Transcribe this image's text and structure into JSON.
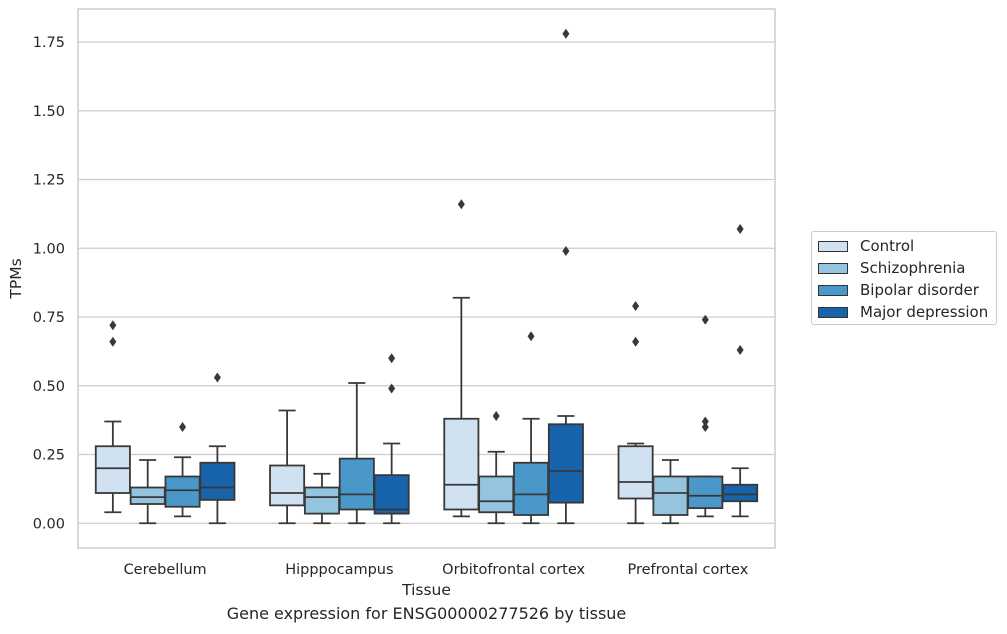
{
  "caption": "Gene expression for ENSG00000277526 by tissue",
  "chart_data": {
    "type": "box",
    "title": "",
    "xlabel": "Tissue",
    "ylabel": "TPMs",
    "ylim": [
      -0.09,
      1.87
    ],
    "yticks": [
      "0.00",
      "0.25",
      "0.50",
      "0.75",
      "1.00",
      "1.25",
      "1.50",
      "1.75"
    ],
    "grid": "horizontal",
    "legend_position": "right",
    "categories": [
      "Cerebellum",
      "Hipppocampus",
      "Orbitofrontal cortex",
      "Prefrontal cortex"
    ],
    "series": [
      {
        "name": "Control",
        "color": "#d0e1f2",
        "boxes": [
          {
            "whislo": 0.04,
            "q1": 0.11,
            "med": 0.2,
            "q3": 0.28,
            "whishi": 0.37,
            "fliers": [
              0.66,
              0.72
            ]
          },
          {
            "whislo": 0.0,
            "q1": 0.065,
            "med": 0.11,
            "q3": 0.21,
            "whishi": 0.41,
            "fliers": []
          },
          {
            "whislo": 0.025,
            "q1": 0.05,
            "med": 0.14,
            "q3": 0.38,
            "whishi": 0.82,
            "fliers": [
              1.16
            ]
          },
          {
            "whislo": 0.0,
            "q1": 0.09,
            "med": 0.15,
            "q3": 0.28,
            "whishi": 0.29,
            "fliers": [
              0.66,
              0.79
            ]
          }
        ]
      },
      {
        "name": "Schizophrenia",
        "color": "#94c4df",
        "boxes": [
          {
            "whislo": 0.0,
            "q1": 0.07,
            "med": 0.095,
            "q3": 0.13,
            "whishi": 0.23,
            "fliers": []
          },
          {
            "whislo": 0.0,
            "q1": 0.035,
            "med": 0.095,
            "q3": 0.13,
            "whishi": 0.18,
            "fliers": []
          },
          {
            "whislo": 0.0,
            "q1": 0.04,
            "med": 0.08,
            "q3": 0.17,
            "whishi": 0.26,
            "fliers": [
              0.39
            ]
          },
          {
            "whislo": 0.0,
            "q1": 0.03,
            "med": 0.11,
            "q3": 0.17,
            "whishi": 0.23,
            "fliers": []
          }
        ]
      },
      {
        "name": "Bipolar disorder",
        "color": "#4a98c9",
        "boxes": [
          {
            "whislo": 0.025,
            "q1": 0.06,
            "med": 0.12,
            "q3": 0.17,
            "whishi": 0.24,
            "fliers": [
              0.35
            ]
          },
          {
            "whislo": 0.0,
            "q1": 0.05,
            "med": 0.105,
            "q3": 0.235,
            "whishi": 0.51,
            "fliers": []
          },
          {
            "whislo": 0.0,
            "q1": 0.03,
            "med": 0.105,
            "q3": 0.22,
            "whishi": 0.38,
            "fliers": [
              0.68
            ]
          },
          {
            "whislo": 0.025,
            "q1": 0.055,
            "med": 0.1,
            "q3": 0.17,
            "whishi": 0.17,
            "fliers": [
              0.35,
              0.37,
              0.74
            ]
          }
        ]
      },
      {
        "name": "Major depression",
        "color": "#1764ab",
        "boxes": [
          {
            "whislo": 0.0,
            "q1": 0.085,
            "med": 0.13,
            "q3": 0.22,
            "whishi": 0.28,
            "fliers": [
              0.53
            ]
          },
          {
            "whislo": 0.0,
            "q1": 0.035,
            "med": 0.05,
            "q3": 0.175,
            "whishi": 0.29,
            "fliers": [
              0.49,
              0.6
            ]
          },
          {
            "whislo": 0.0,
            "q1": 0.075,
            "med": 0.19,
            "q3": 0.36,
            "whishi": 0.39,
            "fliers": [
              0.99,
              1.78
            ]
          },
          {
            "whislo": 0.025,
            "q1": 0.08,
            "med": 0.105,
            "q3": 0.14,
            "whishi": 0.2,
            "fliers": [
              0.63,
              1.07
            ]
          }
        ]
      }
    ]
  }
}
